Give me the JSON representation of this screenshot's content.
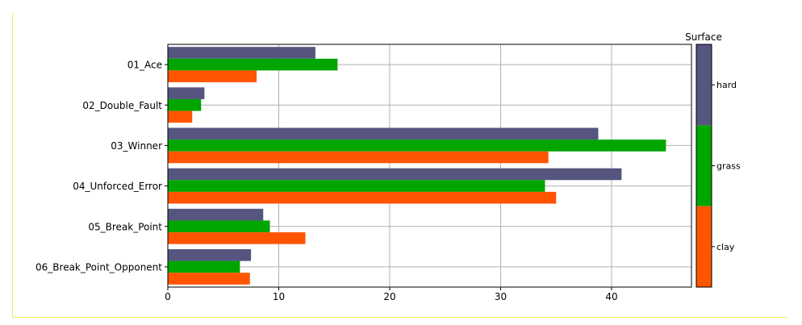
{
  "chart_data": {
    "type": "bar",
    "orientation": "horizontal",
    "categories": [
      "01_Ace",
      "02_Double_Fault",
      "03_Winner",
      "04_Unforced_Error",
      "05_Break_Point",
      "06_Break_Point_Opponent"
    ],
    "series": [
      {
        "name": "hard",
        "color": "#555580",
        "values": [
          13.3,
          3.3,
          38.8,
          40.9,
          8.6,
          7.5
        ]
      },
      {
        "name": "grass",
        "color": "#00a500",
        "values": [
          15.3,
          3.0,
          44.9,
          34.0,
          9.2,
          6.5
        ]
      },
      {
        "name": "clay",
        "color": "#ff5500",
        "values": [
          8.0,
          2.2,
          34.3,
          35.0,
          12.4,
          7.4
        ]
      }
    ],
    "xlim": [
      0,
      47.2
    ],
    "xticks": [
      0,
      10,
      20,
      30,
      40
    ],
    "grid": true,
    "legend": {
      "title": "Surface",
      "placement": "right",
      "entries": [
        "hard",
        "grass",
        "clay"
      ]
    }
  }
}
